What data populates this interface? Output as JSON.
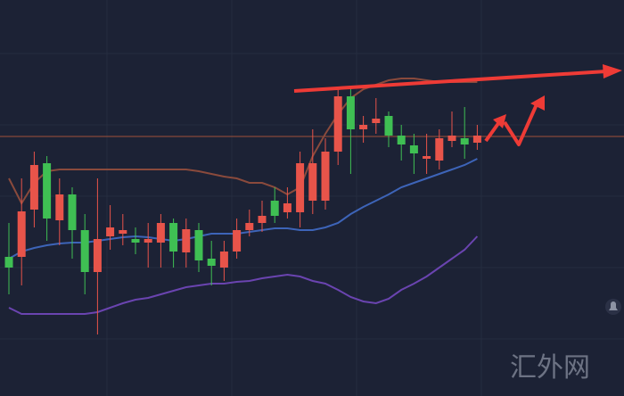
{
  "chart_data": {
    "type": "candlestick",
    "watermark": "汇外网",
    "categories": [
      null,
      null,
      null,
      null,
      null,
      null,
      null,
      null,
      null,
      null,
      null,
      null,
      null,
      null,
      null,
      null,
      null,
      null,
      null,
      null,
      null,
      null,
      null,
      null,
      null,
      null,
      null,
      null,
      null,
      null,
      null,
      null,
      null,
      null,
      null,
      null,
      null,
      null
    ],
    "open": [
      156,
      156,
      209,
      261,
      197,
      226,
      186,
      139,
      179,
      182,
      176,
      172,
      172,
      194,
      161,
      186,
      154,
      144,
      162,
      186,
      194,
      219,
      206,
      206,
      219,
      219,
      274,
      336,
      299,
      306,
      314,
      292,
      281,
      266,
      264,
      286,
      289,
      284
    ],
    "high": [
      194,
      244,
      274,
      269,
      244,
      234,
      204,
      244,
      214,
      204,
      189,
      194,
      204,
      199,
      199,
      194,
      174,
      174,
      199,
      209,
      219,
      234,
      234,
      274,
      299,
      289,
      344,
      344,
      314,
      334,
      319,
      304,
      294,
      294,
      299,
      319,
      324,
      304
    ],
    "low": [
      114,
      124,
      189,
      174,
      169,
      154,
      114,
      69,
      164,
      169,
      159,
      144,
      144,
      144,
      144,
      139,
      124,
      129,
      154,
      179,
      184,
      194,
      199,
      189,
      204,
      209,
      259,
      249,
      284,
      294,
      279,
      264,
      249,
      249,
      254,
      279,
      266,
      276
    ],
    "close": [
      144,
      207,
      259,
      199,
      226,
      186,
      139,
      176,
      189,
      186,
      172,
      176,
      194,
      162,
      187,
      152,
      146,
      162,
      186,
      194,
      202,
      202,
      216,
      261,
      261,
      274,
      336,
      299,
      304,
      311,
      292,
      282,
      272,
      269,
      289,
      292,
      282,
      292
    ],
    "up_color": "#e8544a",
    "down_color": "#3fbf53",
    "bands": [
      {
        "color": "#8a4a3c",
        "values": [
          244,
          216,
          239,
          252,
          254,
          254,
          254,
          254,
          254,
          254,
          254,
          254,
          254,
          254,
          254,
          252,
          249,
          246,
          244,
          239,
          239,
          234,
          226,
          234,
          269,
          294,
          316,
          334,
          344,
          349,
          354,
          356,
          356,
          354,
          352,
          352,
          352,
          352
        ]
      },
      {
        "color": "#3d64b8",
        "values": [
          154,
          162,
          166,
          169,
          171,
          172,
          172,
          174,
          176,
          178,
          179,
          178,
          176,
          174,
          176,
          179,
          182,
          182,
          182,
          184,
          186,
          188,
          188,
          186,
          186,
          189,
          194,
          204,
          212,
          219,
          226,
          234,
          239,
          244,
          249,
          254,
          259,
          266
        ]
      },
      {
        "color": "#6a44b0",
        "values": [
          99,
          92,
          92,
          92,
          92,
          92,
          92,
          94,
          99,
          104,
          108,
          110,
          114,
          118,
          122,
          124,
          126,
          126,
          128,
          129,
          132,
          134,
          136,
          134,
          129,
          126,
          119,
          111,
          106,
          104,
          109,
          119,
          126,
          134,
          144,
          154,
          164,
          179
        ]
      }
    ],
    "reference_line": 291,
    "reference_color": "#a0503a",
    "ylim": [
      0,
      444
    ]
  }
}
